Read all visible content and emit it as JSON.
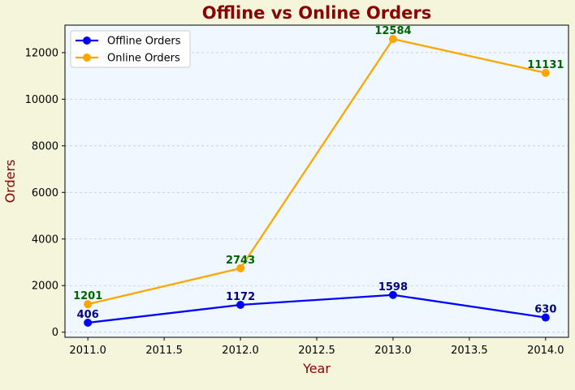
{
  "colors": {
    "page_background": "#f5f5dc",
    "plot_background": "#f0f8ff",
    "title": "#8b0000",
    "axis_label": "#8b0000",
    "offline_line": "#0000ff",
    "offline_label": "#000080",
    "online_line": "#ffa500",
    "online_label": "#006400",
    "grid": "#c8c8c8"
  },
  "chart_data": {
    "type": "line",
    "title": "Offline vs Online Orders",
    "xlabel": "Year",
    "ylabel": "Orders",
    "x": [
      2011,
      2012,
      2013,
      2014
    ],
    "series": [
      {
        "name": "Offline Orders",
        "values": [
          406,
          1172,
          1598,
          630
        ]
      },
      {
        "name": "Online Orders",
        "values": [
          1201,
          2743,
          12584,
          11131
        ]
      }
    ],
    "xlim": [
      2010.85,
      2014.15
    ],
    "ylim": [
      -220,
      13180
    ],
    "x_ticks": [
      2011.0,
      2011.5,
      2012.0,
      2012.5,
      2013.0,
      2013.5,
      2014.0
    ],
    "x_tick_labels": [
      "2011.0",
      "2011.5",
      "2012.0",
      "2012.5",
      "2013.0",
      "2013.5",
      "2014.0"
    ],
    "y_ticks": [
      0,
      2000,
      4000,
      6000,
      8000,
      10000,
      12000
    ],
    "y_tick_labels": [
      "0",
      "2000",
      "4000",
      "6000",
      "8000",
      "10000",
      "12000"
    ],
    "grid": "y-axis dashed",
    "legend_position": "top-left",
    "data_labels": true
  }
}
